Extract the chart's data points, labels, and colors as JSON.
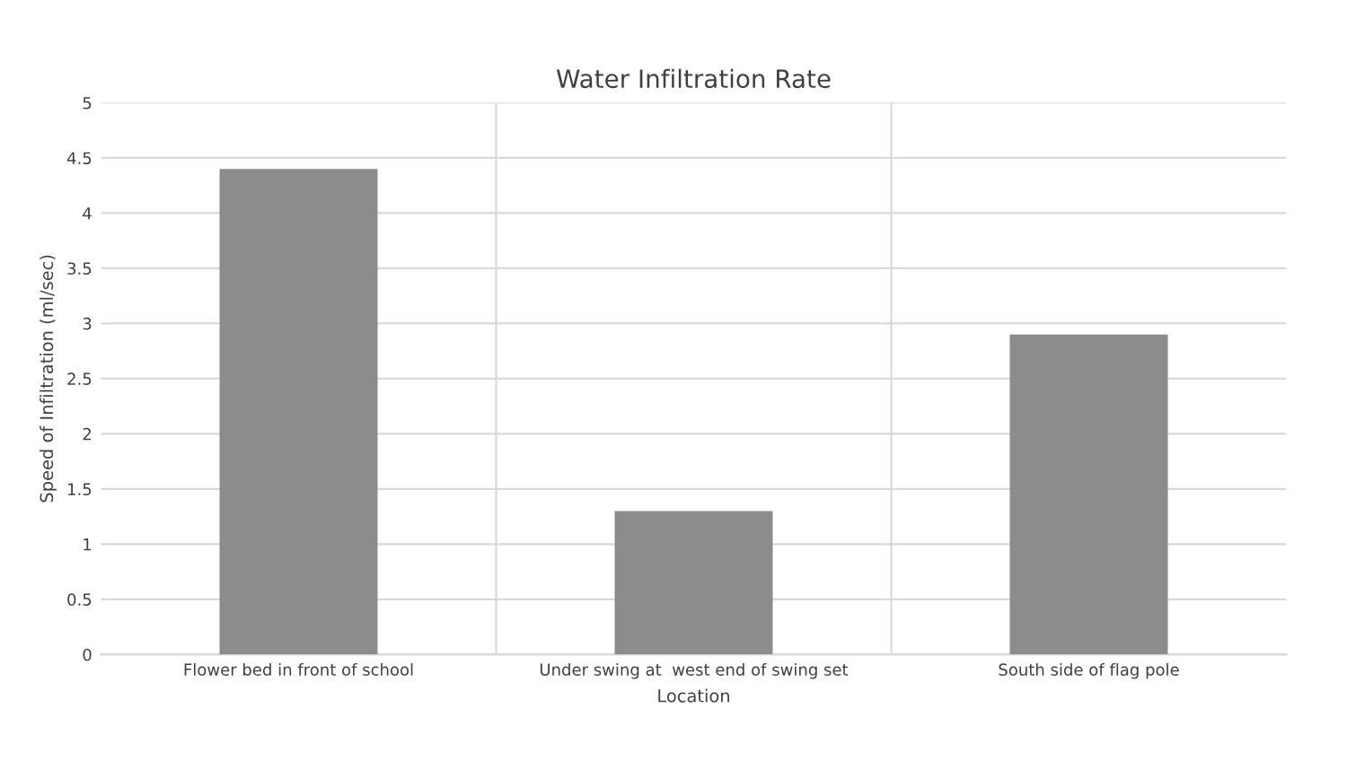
{
  "chart_data": {
    "type": "bar",
    "title": "Water Infiltration Rate",
    "xlabel": "Location",
    "ylabel": "Speed of Infiltration (ml/sec)",
    "categories": [
      "Flower bed in front of school",
      "Under swing at  west end of swing set",
      "South side of flag pole"
    ],
    "values": [
      4.4,
      1.3,
      2.9
    ],
    "color": "#8c8c8c",
    "ylim": [
      0,
      5
    ],
    "yticks": [
      0,
      0.5,
      1,
      1.5,
      2,
      2.5,
      3,
      3.5,
      4,
      4.5,
      5
    ],
    "grid": true,
    "legend": false
  }
}
